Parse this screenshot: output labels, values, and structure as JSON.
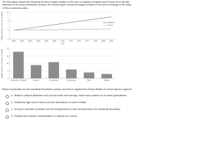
{
  "intro": "The first figure shows the historical trends of wages relative to the cost of capital in England and France from the late sixteenth to the early nineteenth century; the second figure shows the wages relative to the price of energy in the early 1700s in selected cities.",
  "chart_data": [
    {
      "type": "line",
      "y_label": "Wages relative to the cost of capital",
      "x_label": "Year",
      "x": [
        1580,
        1600,
        1620,
        1640,
        1660,
        1680,
        1700,
        1720,
        1740,
        1760,
        1780,
        1800,
        1820
      ],
      "series": [
        {
          "name": "England",
          "color": "#555555",
          "values": [
            4,
            4.5,
            5,
            5.5,
            6,
            6.5,
            7,
            7.5,
            8,
            8.5,
            9,
            9.5,
            10
          ]
        },
        {
          "name": "France",
          "color": "#aaaaaa",
          "values": [
            4,
            4,
            4.2,
            4.1,
            4.3,
            4.2,
            4.4,
            4.3,
            4.5,
            4.4,
            4.6,
            4.5,
            4.7
          ]
        }
      ],
      "xlim": [
        1570,
        1830
      ],
      "xticks": [
        1580,
        1600,
        1620,
        1640,
        1660,
        1680,
        1700,
        1720,
        1740,
        1760,
        1780,
        1800,
        1820
      ],
      "ylim": [
        0,
        12
      ],
      "yticks": [
        0,
        4,
        8,
        12
      ],
      "grid": true,
      "legend": "right"
    },
    {
      "type": "bar",
      "y_label": "Wages relative to the price of energy",
      "categories": [
        "Newcastle, England",
        "London",
        "Amsterdam",
        "Strasbourg",
        "Paris",
        "Beijing"
      ],
      "values": [
        18,
        9,
        11,
        6,
        4,
        3
      ],
      "color": "#8c8c8c",
      "ylim": [
        0,
        20
      ],
      "yticks": [
        0,
        5,
        10,
        15,
        20
      ],
      "grid": true
    }
  ],
  "question": "Which explanation for the Industrial Revolution (which occurred in eighteenth-century Britain) do these figures support?",
  "options": [
    {
      "letter": "a.",
      "text": "Britain's cultural attributes such as hard work and savings, which were passed on to future generations"
    },
    {
      "letter": "b.",
      "text": "Relatively high cost of labour and the abundance of coal in Britain"
    },
    {
      "letter": "c.",
      "text": "Europe's scientific revolution and its Enlightenment of the century before the Industrial Revolution"
    },
    {
      "letter": "d.",
      "text": "Political and cultural characteristics of nations as a whole"
    }
  ]
}
